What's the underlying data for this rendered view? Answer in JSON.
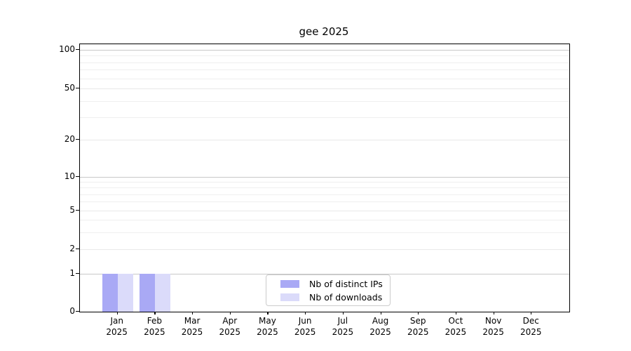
{
  "chart_data": {
    "type": "bar",
    "title": "gee 2025",
    "year_label": "2025",
    "months": [
      "Jan",
      "Feb",
      "Mar",
      "Apr",
      "May",
      "Jun",
      "Jul",
      "Aug",
      "Sep",
      "Oct",
      "Nov",
      "Dec"
    ],
    "categories": [
      "Jan 2025",
      "Feb 2025",
      "Mar 2025",
      "Apr 2025",
      "May 2025",
      "Jun 2025",
      "Jul 2025",
      "Aug 2025",
      "Sep 2025",
      "Oct 2025",
      "Nov 2025",
      "Dec 2025"
    ],
    "series": [
      {
        "name": "Nb of distinct IPs",
        "color": "#a9a9f5",
        "values": [
          1,
          1,
          0,
          0,
          0,
          0,
          0,
          0,
          0,
          0,
          0,
          0
        ]
      },
      {
        "name": "Nb of downloads",
        "color": "#dbdbfa",
        "values": [
          1,
          1,
          0,
          0,
          0,
          0,
          0,
          0,
          0,
          0,
          0,
          0
        ]
      }
    ],
    "y_axis": {
      "scale": "symlog",
      "ticks": [
        0,
        1,
        2,
        5,
        10,
        20,
        50,
        100
      ],
      "minor_ticks": [
        3,
        4,
        6,
        7,
        8,
        9,
        30,
        40,
        60,
        70,
        80,
        90
      ],
      "ylim": [
        0,
        110
      ]
    },
    "grid": "on",
    "legend_position": "lower center"
  }
}
